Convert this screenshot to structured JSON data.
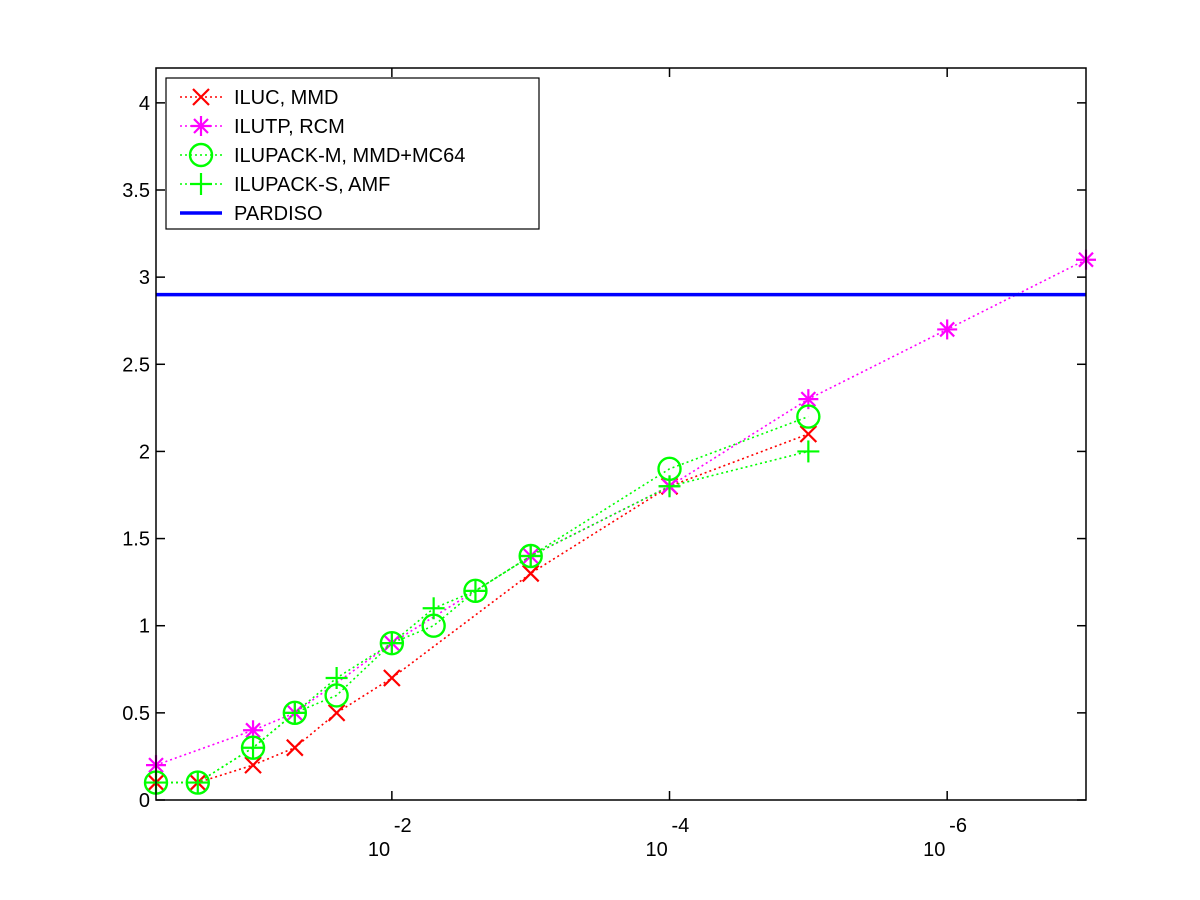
{
  "chart_data": {
    "type": "line",
    "x_scale": "log",
    "x_reversed": true,
    "xlim": [
      0.5,
      1e-07
    ],
    "ylim": [
      0,
      4.2
    ],
    "grid": false,
    "legend_position": "top-left",
    "title": "",
    "xlabel": "",
    "ylabel": "",
    "x_ticks": [
      {
        "value": 0.01,
        "base": "10",
        "exp": "-2"
      },
      {
        "value": 0.0001,
        "base": "10",
        "exp": "-4"
      },
      {
        "value": 1e-06,
        "base": "10",
        "exp": "-6"
      }
    ],
    "y_ticks": [
      {
        "value": 0,
        "label": "0"
      },
      {
        "value": 0.5,
        "label": "0.5"
      },
      {
        "value": 1,
        "label": "1"
      },
      {
        "value": 1.5,
        "label": "1.5"
      },
      {
        "value": 2,
        "label": "2"
      },
      {
        "value": 2.5,
        "label": "2.5"
      },
      {
        "value": 3,
        "label": "3"
      },
      {
        "value": 3.5,
        "label": "3.5"
      },
      {
        "value": 4,
        "label": "4"
      }
    ],
    "series": [
      {
        "name": "ILUC, MMD",
        "color": "#ff0000",
        "marker": "x",
        "line": "dotted",
        "x": [
          0.5,
          0.25,
          0.1,
          0.05,
          0.025,
          0.01,
          0.001,
          0.0001,
          1e-05
        ],
        "y": [
          0.1,
          0.1,
          0.2,
          0.3,
          0.5,
          0.7,
          1.3,
          1.8,
          2.1
        ]
      },
      {
        "name": "ILUTP, RCM",
        "color": "#ff00ff",
        "marker": "asterisk",
        "line": "dotted",
        "x": [
          0.5,
          0.1,
          0.05,
          0.01,
          0.001,
          0.0001,
          1e-05,
          1e-06,
          1e-07
        ],
        "y": [
          0.2,
          0.4,
          0.5,
          0.9,
          1.4,
          1.8,
          2.3,
          2.7,
          3.1
        ]
      },
      {
        "name": "ILUPACK-M, MMD+MC64",
        "color": "#00ff00",
        "marker": "circle",
        "line": "dotted",
        "x": [
          0.5,
          0.25,
          0.1,
          0.05,
          0.025,
          0.01,
          0.005,
          0.0025,
          0.001,
          0.0001,
          1e-05
        ],
        "y": [
          0.1,
          0.1,
          0.3,
          0.5,
          0.6,
          0.9,
          1.0,
          1.2,
          1.4,
          1.9,
          2.2
        ]
      },
      {
        "name": "ILUPACK-S, AMF",
        "color": "#00ff00",
        "marker": "plus",
        "line": "dotted",
        "x": [
          0.5,
          0.25,
          0.1,
          0.05,
          0.025,
          0.01,
          0.005,
          0.0025,
          0.001,
          0.0001,
          1e-05
        ],
        "y": [
          0.1,
          0.1,
          0.3,
          0.5,
          0.7,
          0.9,
          1.1,
          1.2,
          1.4,
          1.8,
          2.0
        ]
      },
      {
        "name": "PARDISO",
        "color": "#0000ff",
        "marker": "none",
        "line": "solid",
        "x": [
          0.5,
          1e-07
        ],
        "y": [
          2.9,
          2.9
        ]
      }
    ]
  }
}
